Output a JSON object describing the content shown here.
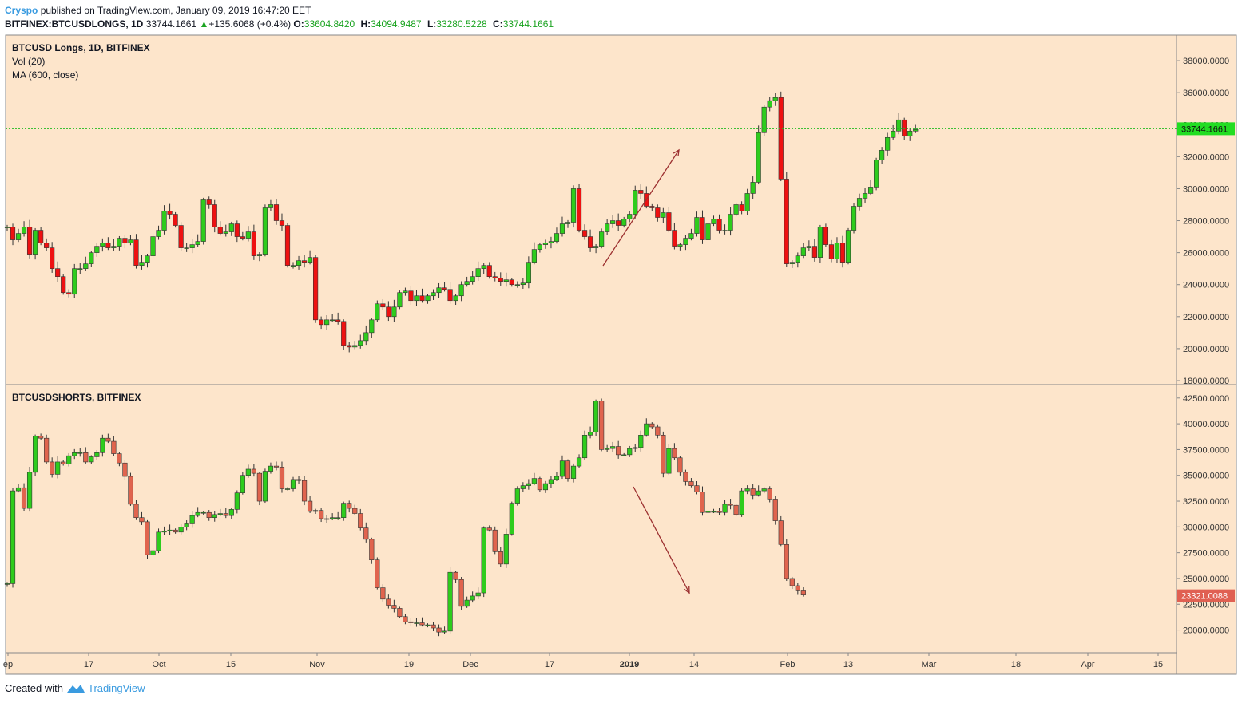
{
  "header": {
    "author": "Cryspo",
    "published_text": "published on TradingView.com, January 09, 2019 16:47:20 EET",
    "symbol": "BITFINEX:BTCUSDLONGS, 1D",
    "last": "33744.1661",
    "change_arrow": "▲",
    "change": "+135.6068 (+0.4%)",
    "o_label": "O:",
    "o": "33604.8420",
    "h_label": "H:",
    "h": "34094.9487",
    "l_label": "L:",
    "l": "33280.5228",
    "c_label": "C:",
    "c": "33744.1661"
  },
  "footer": {
    "created_with": "Created with",
    "brand": "TradingView"
  },
  "colors": {
    "background": "#fde5cb",
    "up": "#2ecc1d",
    "down": "#ee1111",
    "short_down": "#e0644e",
    "short_up": "#2ecc1d",
    "arrow": "#9c3030",
    "last_long": "#22dd22",
    "last_short": "#e06052"
  },
  "chart_data": [
    {
      "type": "candlestick",
      "legend": [
        "BTCUSD Longs, 1D, BITFINEX",
        "Vol (20)",
        "MA (600, close)"
      ],
      "last_value_label": "33744.1661",
      "y_ticks": [
        "38000.0000",
        "36000.0000",
        "34000.0000",
        "32000.0000",
        "30000.0000",
        "28000.0000",
        "26000.0000",
        "24000.0000",
        "22000.0000",
        "20000.0000",
        "18000.0000"
      ],
      "ylim": [
        17750,
        39600
      ],
      "last_value": 33744.1661,
      "close": [
        27600,
        26800,
        27200,
        27600,
        25900,
        27400,
        26600,
        26300,
        25000,
        24500,
        23500,
        23400,
        25000,
        25000,
        25300,
        26000,
        26400,
        26600,
        26300,
        26400,
        26900,
        26600,
        26800,
        25200,
        25400,
        25800,
        27000,
        27400,
        28600,
        28400,
        27700,
        26300,
        26300,
        26500,
        26700,
        29300,
        29000,
        27600,
        27200,
        27300,
        27800,
        27000,
        26900,
        27300,
        25800,
        25900,
        28800,
        29000,
        28000,
        27700,
        25200,
        25200,
        25500,
        25400,
        25700,
        21800,
        21500,
        21800,
        21800,
        21700,
        20200,
        20100,
        20200,
        20500,
        21000,
        21800,
        22800,
        22600,
        22000,
        22600,
        23500,
        23600,
        23000,
        23300,
        23000,
        23300,
        23500,
        23800,
        23700,
        23000,
        23300,
        24000,
        24200,
        24500,
        25000,
        25200,
        24500,
        24400,
        24200,
        24300,
        24000,
        24000,
        24100,
        25400,
        26200,
        26500,
        26600,
        26700,
        27200,
        27800,
        27900,
        30000,
        27400,
        27000,
        26300,
        26400,
        27300,
        27800,
        28000,
        27700,
        28100,
        28400,
        29900,
        29700,
        28900,
        28800,
        28200,
        28500,
        27400,
        26400,
        26500,
        26900,
        27200,
        28200,
        26800,
        27800,
        28100,
        27400,
        27400,
        28400,
        29000,
        28600,
        29700,
        30400,
        33500,
        35100,
        35500,
        35700,
        30600,
        25300,
        25400,
        25800,
        26300,
        26400,
        25700,
        27600,
        26500,
        25600,
        26600,
        25400,
        27400,
        28900,
        29400,
        29700,
        30100,
        31800,
        32400,
        33200,
        33600,
        34300,
        33300,
        33600,
        33700
      ],
      "open_high_low_note": "",
      "annotation_arrow": {
        "from": [
          "2018-12-27",
          25300
        ],
        "to": [
          "2019-01-10",
          32700
        ]
      }
    },
    {
      "type": "candlestick",
      "legend": [
        "BTCUSDSHORTS, BITFINEX"
      ],
      "last_value_label": "23321.0088",
      "y_ticks": [
        "42500.0000",
        "40000.0000",
        "37500.0000",
        "35000.0000",
        "32500.0000",
        "30000.0000",
        "27500.0000",
        "25000.0000",
        "22500.0000",
        "20000.0000"
      ],
      "ylim": [
        17800,
        43800
      ],
      "last_value": 23321.0088,
      "close": [
        24500,
        33500,
        33800,
        31800,
        35300,
        38800,
        38600,
        36300,
        35100,
        36300,
        36100,
        36900,
        37200,
        37200,
        36300,
        36800,
        37200,
        38600,
        38300,
        37100,
        36200,
        34900,
        32200,
        30900,
        30500,
        27300,
        27700,
        29500,
        29600,
        29700,
        29500,
        30000,
        30300,
        31100,
        31400,
        31400,
        30900,
        31200,
        31300,
        31100,
        31700,
        33300,
        35000,
        35600,
        35200,
        32500,
        35400,
        35900,
        35800,
        33700,
        33700,
        34600,
        34500,
        32500,
        31500,
        31600,
        30800,
        30800,
        30900,
        30900,
        32300,
        31800,
        31300,
        29900,
        28800,
        26800,
        24100,
        23000,
        22400,
        22100,
        21300,
        20800,
        20700,
        20700,
        20500,
        20500,
        20200,
        19800,
        19900,
        25600,
        24900,
        22300,
        22900,
        23300,
        23600,
        29900,
        29700,
        27600,
        26400,
        29300,
        32300,
        33700,
        34000,
        34200,
        34700,
        33600,
        34200,
        34600,
        34900,
        36400,
        34700,
        35900,
        36700,
        38900,
        39200,
        42200,
        37500,
        37600,
        37800,
        37000,
        37000,
        37600,
        37700,
        38900,
        40000,
        39700,
        38900,
        35200,
        37600,
        36700,
        35300,
        34400,
        34000,
        33400,
        31400,
        31500,
        31500,
        31400,
        32200,
        32100,
        31200,
        33500,
        33700,
        33100,
        33500,
        33700,
        32700,
        30600,
        28300,
        25000,
        24300,
        23800,
        23400
      ],
      "annotation_arrow": {
        "from": [
          "2019-01-02",
          34500
        ],
        "to": [
          "2019-01-09",
          23800
        ]
      }
    }
  ],
  "x_axis": {
    "labels": [
      "ep",
      "17",
      "Oct",
      "15",
      "Nov",
      "19",
      "Dec",
      "17",
      "2019",
      "14",
      "Feb",
      "13",
      "Mar",
      "18",
      "Apr",
      "15"
    ],
    "bold_label": "2019"
  }
}
